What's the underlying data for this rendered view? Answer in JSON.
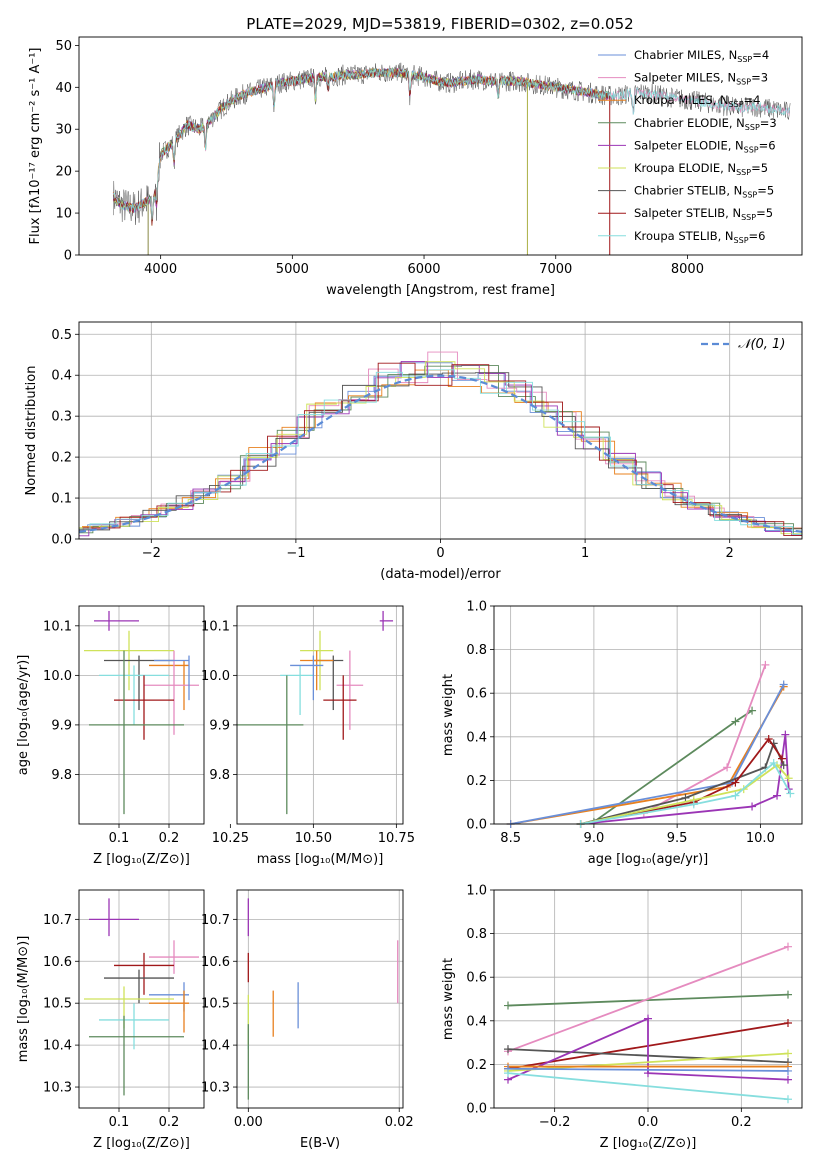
{
  "figure_title": "PLATE=2029, MJD=53819, FIBERID=0302, z=0.052",
  "colors": {
    "Chabrier MILES": "#6a8fd8",
    "Salpeter MILES": "#e58bbf",
    "Kroupa MILES": "#e8801e",
    "Chabrier ELODIE": "#5d8a5d",
    "Salpeter ELODIE": "#9b35b5",
    "Kroupa ELODIE": "#cfe25a",
    "Chabrier STELIB": "#555555",
    "Salpeter STELIB": "#a0181a",
    "Kroupa STELIB": "#86dede"
  },
  "chart_data": [
    {
      "id": "spectrum",
      "type": "line",
      "title": "PLATE=2029, MJD=53819, FIBERID=0302, z=0.052",
      "xlabel": "wavelength [Angstrom, rest frame]",
      "ylabel": "Flux [fλ10⁻¹⁷ erg cm⁻² s⁻¹ A⁻¹]",
      "xlim": [
        3380,
        8870
      ],
      "ylim": [
        0,
        52
      ],
      "xticks": [
        4000,
        5000,
        6000,
        7000,
        8000
      ],
      "yticks": [
        0,
        10,
        20,
        30,
        40,
        50
      ],
      "grid": false,
      "legend_position": "upper-right",
      "legend": [
        {
          "label": "Chabrier MILES",
          "nssp": "4"
        },
        {
          "label": "Salpeter MILES",
          "nssp": "3"
        },
        {
          "label": "Kroupa MILES",
          "nssp": "4"
        },
        {
          "label": "Chabrier ELODIE",
          "nssp": "3"
        },
        {
          "label": "Salpeter ELODIE",
          "nssp": "6"
        },
        {
          "label": "Kroupa ELODIE",
          "nssp": "5"
        },
        {
          "label": "Chabrier STELIB",
          "nssp": "5"
        },
        {
          "label": "Salpeter STELIB",
          "nssp": "5"
        },
        {
          "label": "Kroupa STELIB",
          "nssp": "6"
        }
      ],
      "continuum": {
        "x": [
          3640,
          3700,
          3800,
          3900,
          3950,
          4000,
          4100,
          4200,
          4300,
          4400,
          4500,
          4600,
          4700,
          4800,
          4900,
          5000,
          5100,
          5200,
          5300,
          5400,
          5500,
          5600,
          5700,
          5800,
          5900,
          6000,
          6100,
          6200,
          6300,
          6400,
          6500,
          6600,
          6700,
          6800,
          6900,
          7000,
          7100,
          7200,
          7300,
          7400,
          7500,
          7600,
          7700,
          7800,
          7900,
          8000,
          8100,
          8200,
          8300,
          8400,
          8500,
          8600,
          8700,
          8800
        ],
        "y": [
          14,
          12,
          11,
          13,
          14,
          24,
          27,
          31,
          30,
          33,
          36,
          38,
          39,
          40,
          41,
          41.5,
          42,
          42.5,
          42.5,
          43,
          43,
          43.5,
          43.5,
          43.5,
          43,
          42.5,
          41.5,
          41,
          41.5,
          42,
          41.5,
          41.5,
          41.5,
          41,
          40.5,
          40,
          39.5,
          39,
          38.5,
          38,
          38,
          39,
          38.5,
          38,
          37.5,
          37,
          36.5,
          36,
          35.5,
          35,
          35.5,
          35,
          34.5,
          34
        ]
      },
      "model_extent": {
        "x_start": 3640,
        "x_end": 7410
      }
    },
    {
      "id": "residuals",
      "type": "histogram",
      "xlabel": "(data-model)/error",
      "ylabel": "Normed distribution",
      "xlim": [
        -2.5,
        2.5
      ],
      "ylim": [
        0,
        0.53
      ],
      "xticks": [
        -2,
        -1,
        0,
        1,
        2
      ],
      "yticks": [
        0.0,
        0.1,
        0.2,
        0.3,
        0.4,
        0.5
      ],
      "grid": true,
      "legend_position": "upper-right",
      "reference_curve": {
        "label": "𝒩(0, 1)",
        "mean": 0,
        "sigma": 1
      }
    },
    {
      "id": "age-vs-Z",
      "type": "scatter-errorbar",
      "xlabel": "Z [log₁₀(Z/Z⊙)]",
      "ylabel": "age  [log₁₀(age/yr)]",
      "xlim": [
        0.02,
        0.27
      ],
      "ylim": [
        9.7,
        10.14
      ],
      "xticks": [
        0.1,
        0.2
      ],
      "yticks": [
        9.8,
        9.9,
        10.0,
        10.1
      ],
      "grid": true,
      "points": [
        {
          "series": "Salpeter ELODIE",
          "x": 0.08,
          "xerr": [
            0.05,
            0.14
          ],
          "y": 10.11,
          "yerr": [
            10.09,
            10.13
          ]
        },
        {
          "series": "Kroupa ELODIE",
          "x": 0.12,
          "xerr": [
            0.03,
            0.21
          ],
          "y": 10.05,
          "yerr": [
            9.97,
            10.09
          ]
        },
        {
          "series": "Chabrier STELIB",
          "x": 0.14,
          "xerr": [
            0.07,
            0.21
          ],
          "y": 10.03,
          "yerr": [
            9.93,
            10.04
          ]
        },
        {
          "series": "Kroupa MILES",
          "x": 0.23,
          "xerr": [
            0.16,
            0.24
          ],
          "y": 10.02,
          "yerr": [
            9.93,
            10.03
          ]
        },
        {
          "series": "Salpeter MILES",
          "x": 0.21,
          "xerr": [
            0.15,
            0.26
          ],
          "y": 9.98,
          "yerr": [
            9.88,
            10.05
          ]
        },
        {
          "series": "Kroupa STELIB",
          "x": 0.13,
          "xerr": [
            0.06,
            0.2
          ],
          "y": 10.0,
          "yerr": [
            9.9,
            10.02
          ]
        },
        {
          "series": "Chabrier MILES",
          "x": 0.24,
          "xerr": [
            0.17,
            0.24
          ],
          "y": 10.03,
          "yerr": [
            9.95,
            10.04
          ]
        },
        {
          "series": "Salpeter STELIB",
          "x": 0.15,
          "xerr": [
            0.09,
            0.21
          ],
          "y": 9.95,
          "yerr": [
            9.87,
            10.0
          ]
        },
        {
          "series": "Chabrier ELODIE",
          "x": 0.11,
          "xerr": [
            0.04,
            0.23
          ],
          "y": 9.9,
          "yerr": [
            9.72,
            10.05
          ]
        }
      ]
    },
    {
      "id": "age-vs-mass",
      "type": "scatter-errorbar",
      "xlabel": "mass [log₁₀(M/M⊙)]",
      "ylabel": "",
      "xlim": [
        10.27,
        10.77
      ],
      "ylim": [
        9.7,
        10.14
      ],
      "xticks": [
        10.25,
        10.5,
        10.75
      ],
      "yticks": [
        9.8,
        9.9,
        10.0,
        10.1
      ],
      "grid": true,
      "points": [
        {
          "series": "Salpeter ELODIE",
          "x": 10.71,
          "xerr": [
            10.7,
            10.74
          ],
          "y": 10.11,
          "yerr": [
            10.09,
            10.13
          ]
        },
        {
          "series": "Kroupa ELODIE",
          "x": 10.52,
          "xerr": [
            10.46,
            10.56
          ],
          "y": 10.05,
          "yerr": [
            9.97,
            10.09
          ]
        },
        {
          "series": "Chabrier STELIB",
          "x": 10.56,
          "xerr": [
            10.5,
            10.59
          ],
          "y": 10.03,
          "yerr": [
            9.93,
            10.04
          ]
        },
        {
          "series": "Kroupa MILES",
          "x": 10.51,
          "xerr": [
            10.46,
            10.56
          ],
          "y": 10.03,
          "yerr": [
            9.97,
            10.05
          ]
        },
        {
          "series": "Salpeter MILES",
          "x": 10.61,
          "xerr": [
            10.57,
            10.65
          ],
          "y": 9.98,
          "yerr": [
            9.89,
            10.05
          ]
        },
        {
          "series": "Kroupa STELIB",
          "x": 10.46,
          "xerr": [
            10.4,
            10.5
          ],
          "y": 10.0,
          "yerr": [
            9.92,
            10.02
          ]
        },
        {
          "series": "Chabrier MILES",
          "x": 10.5,
          "xerr": [
            10.43,
            10.53
          ],
          "y": 10.02,
          "yerr": [
            9.95,
            10.04
          ]
        },
        {
          "series": "Salpeter STELIB",
          "x": 10.59,
          "xerr": [
            10.53,
            10.63
          ],
          "y": 9.95,
          "yerr": [
            9.87,
            10.0
          ]
        },
        {
          "series": "Chabrier ELODIE",
          "x": 10.42,
          "xerr": [
            10.27,
            10.47
          ],
          "y": 9.9,
          "yerr": [
            9.72,
            10.0
          ]
        }
      ]
    },
    {
      "id": "massweight-vs-age",
      "type": "line",
      "xlabel": "age  [log₁₀(age/yr)]",
      "ylabel": "mass weight",
      "xlim": [
        8.4,
        10.25
      ],
      "ylim": [
        0,
        1
      ],
      "xticks": [
        8.5,
        9.0,
        9.5,
        10.0
      ],
      "yticks": [
        0.0,
        0.2,
        0.4,
        0.6,
        0.8,
        1.0
      ],
      "grid": true,
      "series": [
        {
          "name": "Chabrier ELODIE",
          "x": [
            9.0,
            9.85,
            9.95
          ],
          "y": [
            0.01,
            0.47,
            0.52
          ]
        },
        {
          "name": "Salpeter MILES",
          "x": 9.3,
          "x_list": [
            9.3,
            9.8,
            10.03
          ],
          "y": [
            0.05,
            0.26,
            0.73
          ]
        },
        {
          "name": "Kroupa MILES",
          "x": [
            8.5,
            9.8,
            10.14
          ],
          "y": [
            0.0,
            0.17,
            0.63
          ]
        },
        {
          "name": "Chabrier MILES",
          "x": [
            8.5,
            9.83,
            10.14
          ],
          "y": [
            0.0,
            0.19,
            0.64
          ]
        },
        {
          "name": "Salpeter ELODIE",
          "x": [
            8.92,
            9.95,
            10.1,
            10.15,
            10.17
          ],
          "y": [
            0.0,
            0.08,
            0.13,
            0.41,
            0.16
          ]
        },
        {
          "name": "Chabrier STELIB",
          "x": [
            8.92,
            9.55,
            10.03,
            10.08,
            10.14
          ],
          "y": [
            0.0,
            0.12,
            0.26,
            0.37,
            0.27
          ]
        },
        {
          "name": "Salpeter STELIB",
          "x": [
            8.92,
            9.6,
            9.85,
            10.05,
            10.13
          ],
          "y": [
            0.0,
            0.1,
            0.19,
            0.39,
            0.3
          ]
        },
        {
          "name": "Kroupa ELODIE",
          "x": [
            8.92,
            9.6,
            9.9,
            10.1,
            10.17
          ],
          "y": [
            0.0,
            0.11,
            0.16,
            0.27,
            0.21
          ]
        },
        {
          "name": "Kroupa STELIB",
          "x": [
            8.92,
            9.6,
            9.85,
            10.08,
            10.18
          ],
          "y": [
            0.0,
            0.09,
            0.13,
            0.28,
            0.14
          ]
        }
      ]
    },
    {
      "id": "mass-vs-Z",
      "type": "scatter-errorbar",
      "xlabel": "Z [log₁₀(Z/Z⊙)]",
      "ylabel": "mass [log₁₀(M/M⊙)]",
      "xlim": [
        0.02,
        0.27
      ],
      "ylim": [
        10.25,
        10.77
      ],
      "xticks": [
        0.1,
        0.2
      ],
      "yticks": [
        10.3,
        10.4,
        10.5,
        10.6,
        10.7
      ],
      "grid": true,
      "points": [
        {
          "series": "Salpeter ELODIE",
          "x": 0.08,
          "xerr": [
            0.04,
            0.14
          ],
          "y": 10.7,
          "yerr": [
            10.66,
            10.75
          ]
        },
        {
          "series": "Salpeter MILES",
          "x": 0.21,
          "xerr": [
            0.16,
            0.26
          ],
          "y": 10.61,
          "yerr": [
            10.57,
            10.65
          ]
        },
        {
          "series": "Salpeter STELIB",
          "x": 0.15,
          "xerr": [
            0.09,
            0.21
          ],
          "y": 10.59,
          "yerr": [
            10.52,
            10.62
          ]
        },
        {
          "series": "Chabrier STELIB",
          "x": 0.14,
          "xerr": [
            0.07,
            0.21
          ],
          "y": 10.56,
          "yerr": [
            10.5,
            10.58
          ]
        },
        {
          "series": "Chabrier MILES",
          "x": 0.23,
          "xerr": [
            0.16,
            0.24
          ],
          "y": 10.52,
          "yerr": [
            10.48,
            10.55
          ]
        },
        {
          "series": "Kroupa ELODIE",
          "x": 0.11,
          "xerr": [
            0.03,
            0.21
          ],
          "y": 10.51,
          "yerr": [
            10.44,
            10.54
          ]
        },
        {
          "series": "Kroupa MILES",
          "x": 0.23,
          "xerr": [
            0.16,
            0.24
          ],
          "y": 10.5,
          "yerr": [
            10.43,
            10.53
          ]
        },
        {
          "series": "Kroupa STELIB",
          "x": 0.13,
          "xerr": [
            0.06,
            0.2
          ],
          "y": 10.46,
          "yerr": [
            10.39,
            10.5
          ]
        },
        {
          "series": "Chabrier ELODIE",
          "x": 0.11,
          "xerr": [
            0.04,
            0.23
          ],
          "y": 10.42,
          "yerr": [
            10.28,
            10.47
          ]
        }
      ]
    },
    {
      "id": "mass-vs-EBV",
      "type": "scatter-errorbar",
      "xlabel": "E(B-V)",
      "ylabel": "",
      "xlim": [
        -0.0015,
        0.0205
      ],
      "ylim": [
        10.25,
        10.77
      ],
      "xticks": [
        0.0,
        0.02
      ],
      "yticks": [
        10.3,
        10.4,
        10.5,
        10.6,
        10.7
      ],
      "grid": true,
      "points": [
        {
          "series": "Salpeter ELODIE",
          "x": 0.0,
          "y": 10.7,
          "yerr": [
            10.66,
            10.75
          ]
        },
        {
          "series": "Salpeter STELIB",
          "x": 0.0,
          "y": 10.58,
          "yerr": [
            10.55,
            10.62
          ]
        },
        {
          "series": "Salpeter MILES",
          "x": 0.0198,
          "y": 10.6,
          "yerr": [
            10.5,
            10.65
          ]
        },
        {
          "series": "Chabrier MILES",
          "x": 0.0066,
          "y": 10.49,
          "yerr": [
            10.44,
            10.55
          ]
        },
        {
          "series": "Kroupa MILES",
          "x": 0.0033,
          "y": 10.48,
          "yerr": [
            10.42,
            10.53
          ]
        },
        {
          "series": "Kroupa STELIB",
          "x": 0.0,
          "y": 10.44,
          "yerr": [
            10.39,
            10.5
          ]
        },
        {
          "series": "Kroupa ELODIE",
          "x": 0.0,
          "y": 10.46,
          "yerr": [
            10.4,
            10.52
          ]
        },
        {
          "series": "Chabrier ELODIE",
          "x": 0.0,
          "y": 10.34,
          "yerr": [
            10.27,
            10.45
          ]
        }
      ]
    },
    {
      "id": "massweight-vs-Z",
      "type": "line",
      "xlabel": "Z [log₁₀(Z/Z⊙)]",
      "ylabel": "mass weight",
      "xlim": [
        -0.33,
        0.33
      ],
      "ylim": [
        0,
        1
      ],
      "xticks": [
        -0.2,
        0.0,
        0.2
      ],
      "yticks": [
        0.0,
        0.2,
        0.4,
        0.6,
        0.8,
        1.0
      ],
      "grid": true,
      "series": [
        {
          "name": "Chabrier ELODIE",
          "x": [
            -0.3,
            0.3
          ],
          "y": [
            0.47,
            0.52
          ]
        },
        {
          "name": "Salpeter MILES",
          "x": [
            -0.3,
            0.3
          ],
          "y": [
            0.26,
            0.74
          ]
        },
        {
          "name": "Salpeter STELIB",
          "x": [
            -0.3,
            0.3
          ],
          "y": [
            0.18,
            0.39
          ]
        },
        {
          "name": "Chabrier STELIB",
          "x": [
            -0.3,
            0.3
          ],
          "y": [
            0.27,
            0.21
          ]
        },
        {
          "name": "Salpeter ELODIE",
          "x": [
            -0.3,
            0.0,
            0.0,
            0.3
          ],
          "y": [
            0.13,
            0.41,
            0.16,
            0.13
          ]
        },
        {
          "name": "Kroupa ELODIE",
          "x": [
            -0.3,
            0.3
          ],
          "y": [
            0.17,
            0.25
          ]
        },
        {
          "name": "Kroupa MILES",
          "x": [
            -0.3,
            0.3
          ],
          "y": [
            0.19,
            0.19
          ]
        },
        {
          "name": "Chabrier MILES",
          "x": [
            -0.3,
            0.3
          ],
          "y": [
            0.18,
            0.17
          ]
        },
        {
          "name": "Kroupa STELIB",
          "x": [
            -0.3,
            0.3
          ],
          "y": [
            0.16,
            0.04
          ]
        }
      ]
    }
  ]
}
